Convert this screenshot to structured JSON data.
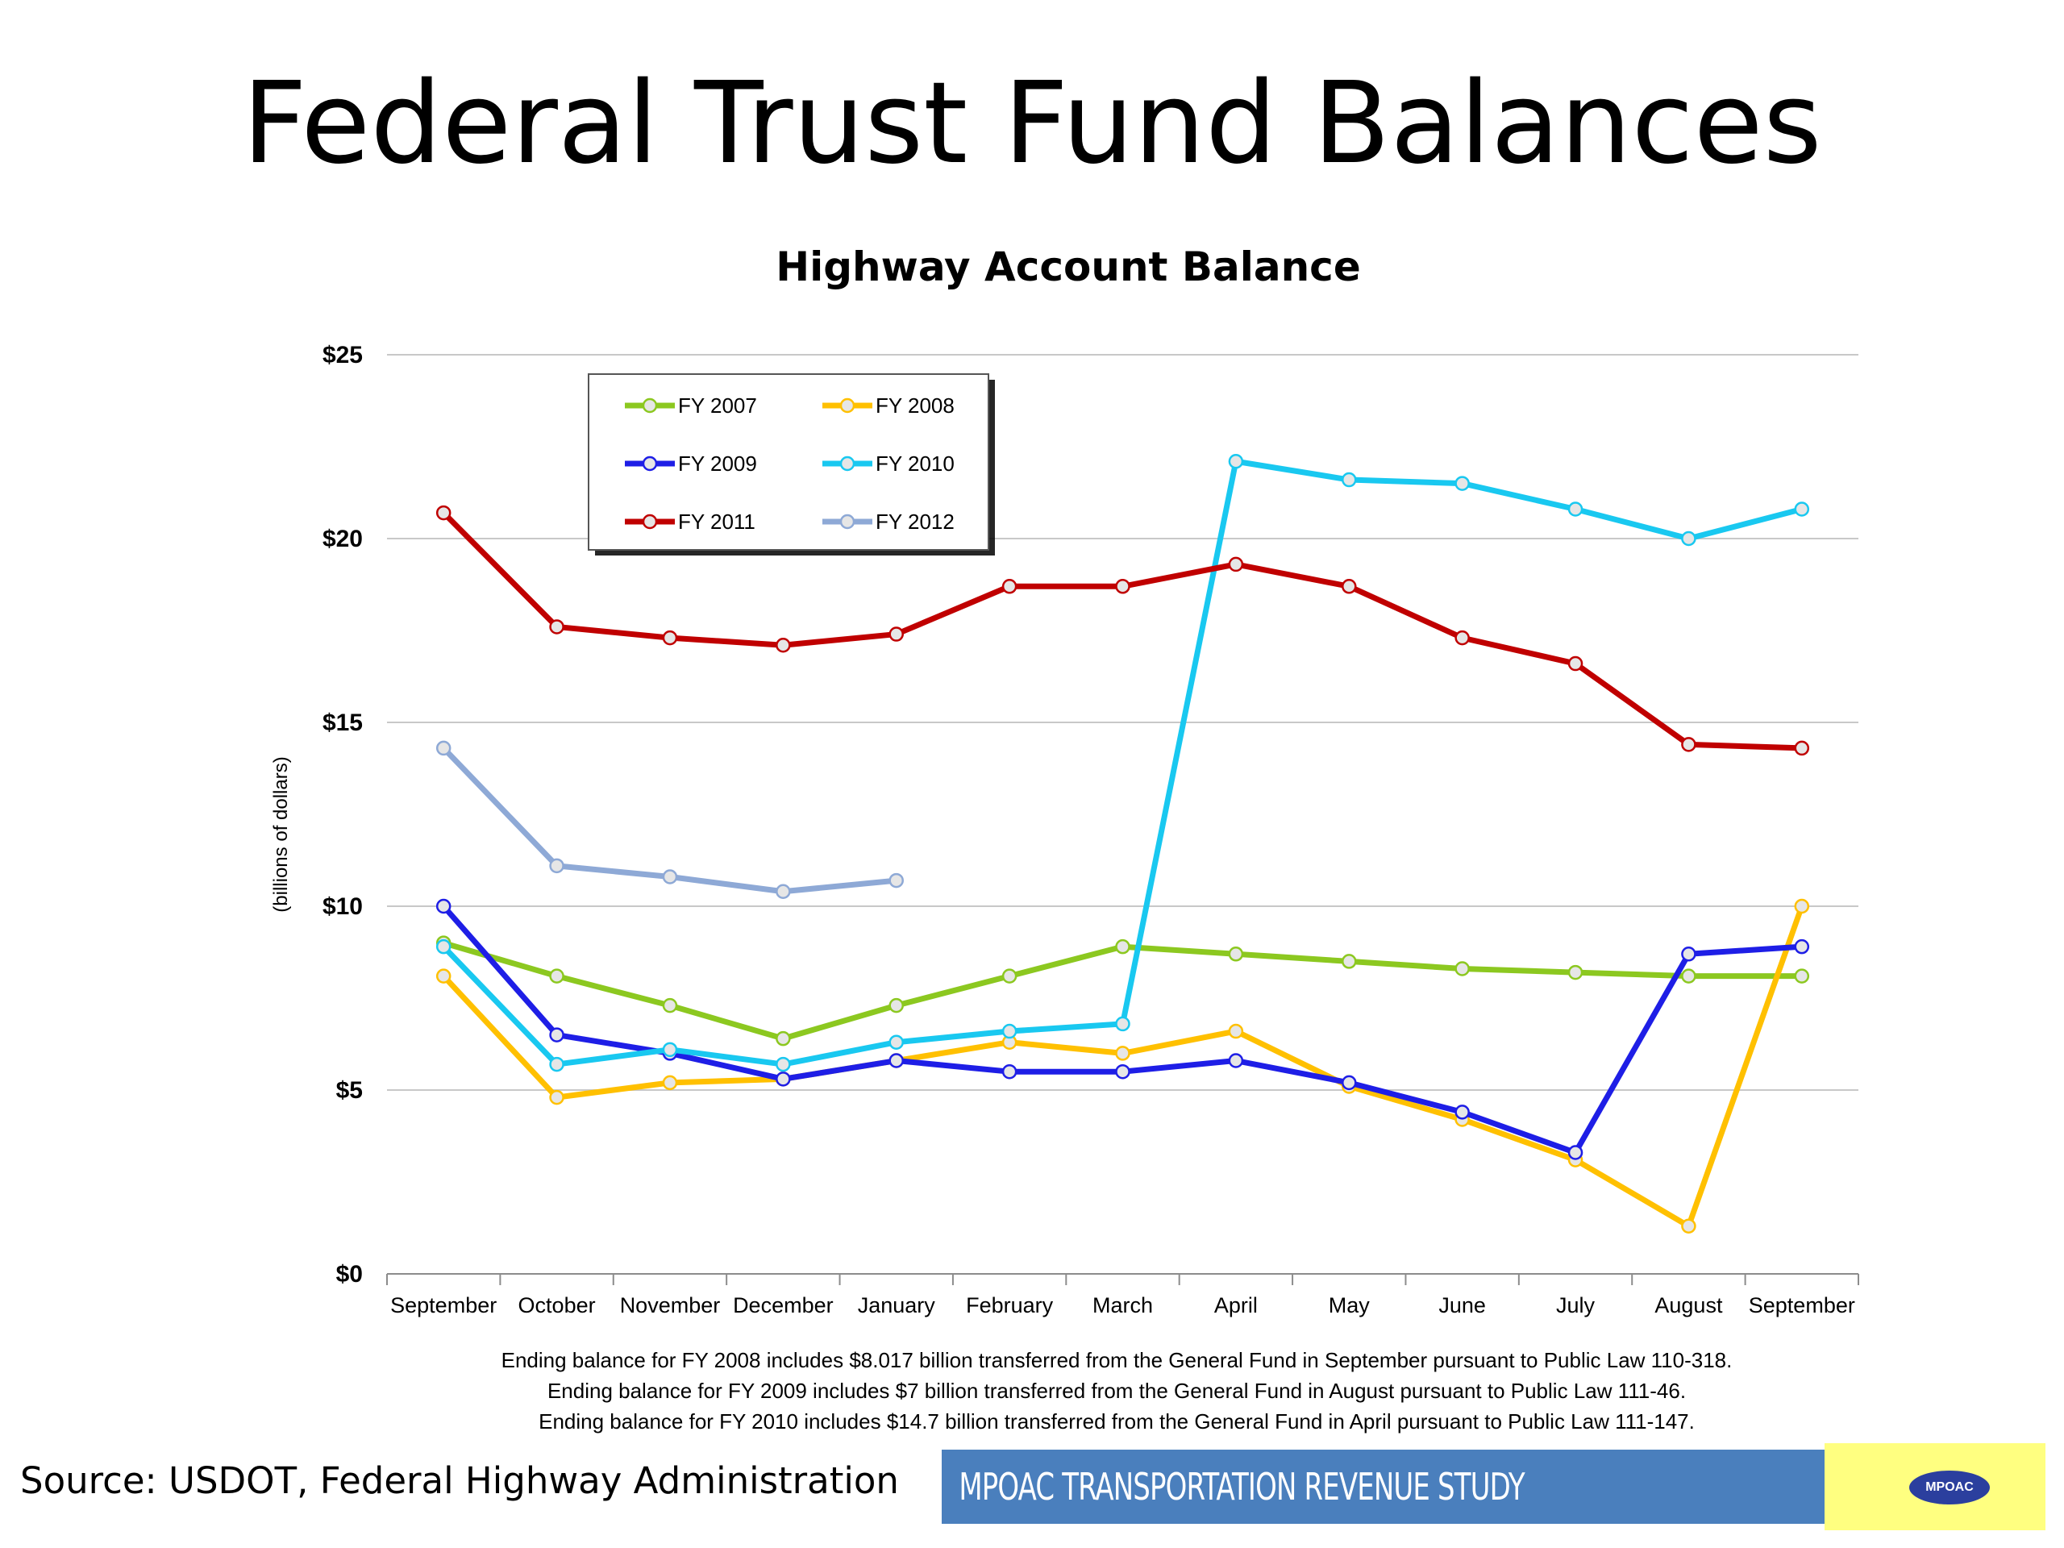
{
  "slide": {
    "title": "Federal Trust Fund Balances",
    "footnotes": [
      "Ending balance for FY 2008 includes $8.017 billion transferred from the General Fund in September pursuant to Public Law 110-318.",
      "Ending balance for FY 2009 includes $7 billion transferred from the General Fund in August pursuant to Public Law 111-46.",
      "Ending balance for FY 2010 includes $14.7 billion transferred from the General  Fund in April pursuant to Public Law 111-147."
    ],
    "source": "Source: USDOT, Federal Highway Administration",
    "banner": "MPOAC  TRANSPORTATION REVENUE STUDY",
    "logo": "MPOAC",
    "banner_color": "#4a7fbd",
    "logo_bg_color": "#ffff80"
  },
  "chart_data": {
    "type": "line",
    "title": "Highway Account Balance",
    "xlabel": "",
    "ylabel": "(billions of dollars)",
    "categories": [
      "September",
      "October",
      "November",
      "December",
      "January",
      "February",
      "March",
      "April",
      "May",
      "June",
      "July",
      "August",
      "September"
    ],
    "ylim": [
      0,
      25
    ],
    "yticks": [
      0,
      5,
      10,
      15,
      20,
      25
    ],
    "ytick_labels": [
      "$0",
      "$5",
      "$10",
      "$15",
      "$20",
      "$25"
    ],
    "grid": true,
    "legend_position": "top-left",
    "series": [
      {
        "name": "FY 2007",
        "color": "#8cc820",
        "values": [
          9.0,
          8.1,
          7.3,
          6.4,
          7.3,
          8.1,
          8.9,
          8.7,
          8.5,
          8.3,
          8.2,
          8.1,
          8.1
        ]
      },
      {
        "name": "FY 2008",
        "color": "#ffc000",
        "values": [
          8.1,
          4.8,
          5.2,
          5.3,
          5.8,
          6.3,
          6.0,
          6.6,
          5.1,
          4.2,
          3.1,
          1.3,
          10.0
        ]
      },
      {
        "name": "FY 2009",
        "color": "#1e1ee6",
        "values": [
          10.0,
          6.5,
          6.0,
          5.3,
          5.8,
          5.5,
          5.5,
          5.8,
          5.2,
          4.4,
          3.3,
          8.7,
          8.9
        ]
      },
      {
        "name": "FY 2010",
        "color": "#19c8f0",
        "values": [
          8.9,
          5.7,
          6.1,
          5.7,
          6.3,
          6.6,
          6.8,
          22.1,
          21.6,
          21.5,
          20.8,
          20.0,
          20.8
        ]
      },
      {
        "name": "FY 2011",
        "color": "#c00000",
        "values": [
          20.7,
          17.6,
          17.3,
          17.1,
          17.4,
          18.7,
          18.7,
          19.3,
          18.7,
          17.3,
          16.6,
          14.4,
          14.3
        ]
      },
      {
        "name": "FY 2012",
        "color": "#8ea9d6",
        "values": [
          14.3,
          11.1,
          10.8,
          10.4,
          10.7,
          null,
          null,
          null,
          null,
          null,
          null,
          null,
          null
        ]
      }
    ]
  }
}
